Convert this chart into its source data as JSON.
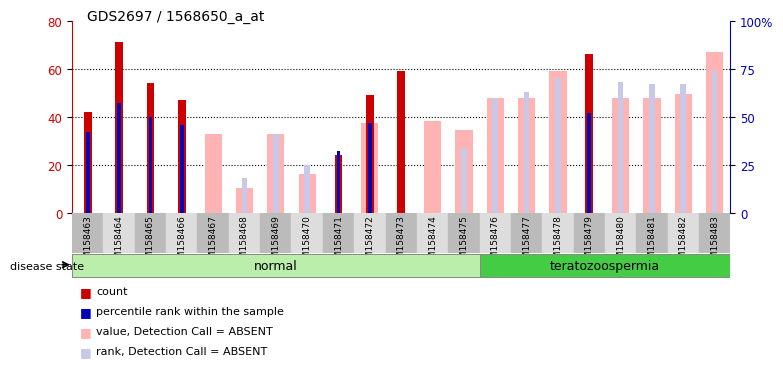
{
  "title": "GDS2697 / 1568650_a_at",
  "samples": [
    "GSM158463",
    "GSM158464",
    "GSM158465",
    "GSM158466",
    "GSM158467",
    "GSM158468",
    "GSM158469",
    "GSM158470",
    "GSM158471",
    "GSM158472",
    "GSM158473",
    "GSM158474",
    "GSM158475",
    "GSM158476",
    "GSM158477",
    "GSM158478",
    "GSM158479",
    "GSM158480",
    "GSM158481",
    "GSM158482",
    "GSM158483"
  ],
  "count_values": [
    42,
    71,
    54,
    47,
    null,
    null,
    null,
    null,
    24,
    49,
    59,
    null,
    null,
    null,
    null,
    null,
    66,
    null,
    null,
    null,
    null
  ],
  "percentile_values": [
    42,
    57,
    50,
    46,
    null,
    null,
    null,
    null,
    32,
    47,
    null,
    null,
    null,
    null,
    null,
    null,
    52,
    null,
    null,
    null,
    null
  ],
  "absent_value_values": [
    null,
    null,
    null,
    null,
    41,
    13,
    41,
    20,
    null,
    47,
    null,
    48,
    43,
    60,
    60,
    74,
    null,
    60,
    60,
    62,
    84
  ],
  "absent_rank_values": [
    null,
    null,
    null,
    null,
    null,
    18,
    41,
    25,
    null,
    null,
    null,
    null,
    34,
    60,
    63,
    70,
    65,
    68,
    67,
    67,
    74
  ],
  "disease_groups": [
    {
      "label": "normal",
      "start": 0,
      "end": 13
    },
    {
      "label": "teratozoospermia",
      "start": 13,
      "end": 21
    }
  ],
  "ylim_left": [
    0,
    80
  ],
  "ylim_right": [
    0,
    100
  ],
  "yticks_left": [
    0,
    20,
    40,
    60,
    80
  ],
  "yticks_right": [
    0,
    25,
    50,
    75,
    100
  ],
  "count_color": "#cc0000",
  "percentile_color": "#0000bb",
  "absent_value_color": "#ffb3b3",
  "absent_rank_color": "#c8c8e8",
  "legend_items": [
    {
      "label": "count",
      "color": "#cc0000"
    },
    {
      "label": "percentile rank within the sample",
      "color": "#0000bb"
    },
    {
      "label": "value, Detection Call = ABSENT",
      "color": "#ffb3b3"
    },
    {
      "label": "rank, Detection Call = ABSENT",
      "color": "#c8c8e8"
    }
  ],
  "disease_state_label": "disease state",
  "normal_color": "#bbeeaa",
  "terato_color": "#44cc44",
  "grid_color": "#000000",
  "background_color": "#ffffff",
  "tick_label_color_left": "#cc0000",
  "tick_label_color_right": "#0000bb"
}
